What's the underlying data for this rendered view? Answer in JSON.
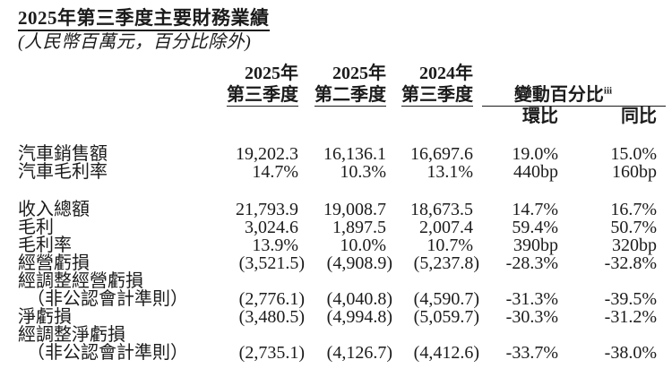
{
  "page": {
    "title": "2025年第三季度主要財務業績",
    "subtitle": "(人民幣百萬元，百分比除外)"
  },
  "table": {
    "headers": {
      "col1_line1": "2025年",
      "col1_line2": "第三季度",
      "col2_line1": "2025年",
      "col2_line2": "第二季度",
      "col3_line1": "2024年",
      "col3_line2": "第三季度",
      "change_label": "變動百分比",
      "change_footnote": "iii",
      "qoq": "環比",
      "yoy": "同比"
    },
    "rows": [
      {
        "label": "汽車銷售額",
        "values": [
          "19,202.3",
          "16,136.1",
          "16,697.6",
          "19.0%",
          "15.0%"
        ]
      },
      {
        "label": "汽車毛利率",
        "values": [
          "14.7%",
          "10.3%",
          "13.1%",
          "440bp",
          "160bp"
        ]
      },
      {
        "label": "收入總額",
        "values": [
          "21,793.9",
          "19,008.7",
          "18,673.5",
          "14.7%",
          "16.7%"
        ]
      },
      {
        "label": "毛利",
        "values": [
          "3,024.6",
          "1,897.5",
          "2,007.4",
          "59.4%",
          "50.7%"
        ]
      },
      {
        "label": "毛利率",
        "values": [
          "13.9%",
          "10.0%",
          "10.7%",
          "390bp",
          "320bp"
        ]
      },
      {
        "label": "經營虧損",
        "values": [
          "(3,521.5)",
          "(4,908.9)",
          "(5,237.8)",
          "-28.3%",
          "-32.8%"
        ]
      },
      {
        "label": "經調整經營虧損",
        "values": [
          "",
          "",
          "",
          "",
          ""
        ]
      },
      {
        "label": "（非公認會計準則）",
        "values": [
          "(2,776.1)",
          "(4,040.8)",
          "(4,590.7)",
          "-31.3%",
          "-39.5%"
        ]
      },
      {
        "label": "淨虧損",
        "values": [
          "(3,480.5)",
          "(4,994.8)",
          "(5,059.7)",
          "-30.3%",
          "-31.2%"
        ]
      },
      {
        "label": "經調整淨虧損",
        "values": [
          "",
          "",
          "",
          "",
          ""
        ]
      },
      {
        "label": "（非公認會計準則）",
        "values": [
          "(2,735.1)",
          "(4,126.7)",
          "(4,412.6)",
          "-33.7%",
          "-38.0%"
        ]
      }
    ]
  },
  "colors": {
    "text": "#1b1b1b",
    "background": "#ffffff"
  }
}
